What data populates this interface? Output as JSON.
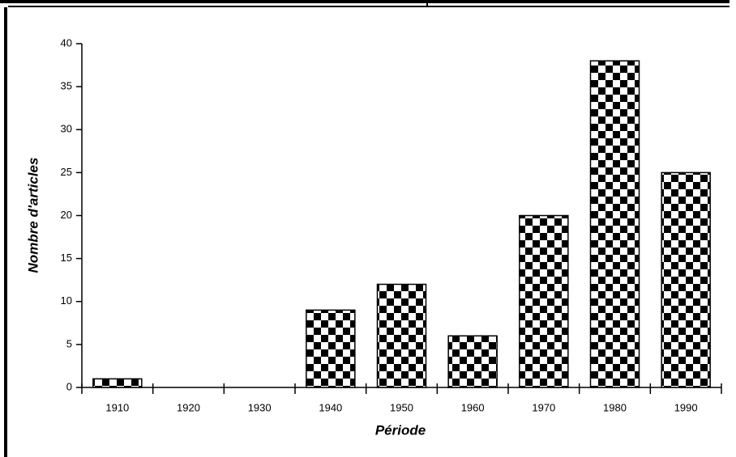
{
  "chart_data": {
    "type": "bar",
    "categories": [
      "1910",
      "1920",
      "1930",
      "1940",
      "1950",
      "1960",
      "1970",
      "1980",
      "1990"
    ],
    "values": [
      1,
      0,
      0,
      9,
      12,
      6,
      20,
      38,
      25
    ],
    "color": "#000000",
    "ylim": [
      0,
      40
    ],
    "yticks": [
      0,
      5,
      10,
      15,
      20,
      25,
      30,
      35,
      40
    ],
    "xlabel": "Période",
    "ylabel": "Nombre d'articles",
    "grid": false
  }
}
